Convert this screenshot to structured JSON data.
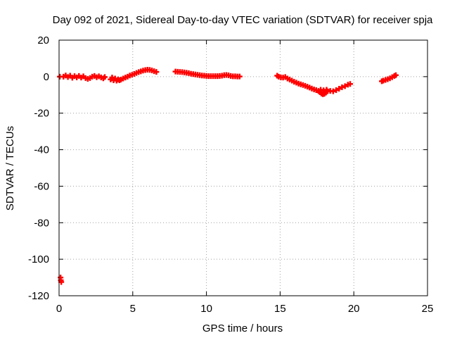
{
  "chart_data": {
    "type": "scatter",
    "title": "Day 092 of 2021, Sidereal Day-to-day VTEC variation (SDTVAR) for receiver spja",
    "xlabel": "GPS time / hours",
    "ylabel": "SDTVAR / TECUs",
    "xlim": [
      0,
      25
    ],
    "ylim": [
      -120,
      20
    ],
    "xticks": [
      0,
      5,
      10,
      15,
      20,
      25
    ],
    "yticks": [
      20,
      0,
      -20,
      -40,
      -60,
      -80,
      -100,
      -120
    ],
    "grid": true,
    "marker": "plus",
    "series": [
      {
        "name": "SDTVAR",
        "color": "#ff0000",
        "points": [
          [
            0.05,
            0.0
          ],
          [
            0.1,
            -110.0
          ],
          [
            0.12,
            -111.5
          ],
          [
            0.15,
            -112.5
          ],
          [
            0.3,
            0.0
          ],
          [
            0.45,
            0.6
          ],
          [
            0.6,
            -0.2
          ],
          [
            0.75,
            0.5
          ],
          [
            0.9,
            -0.6
          ],
          [
            1.05,
            0.3
          ],
          [
            1.2,
            -0.4
          ],
          [
            1.35,
            0.4
          ],
          [
            1.5,
            -0.5
          ],
          [
            1.65,
            0.2
          ],
          [
            1.8,
            -0.8
          ],
          [
            1.95,
            -1.2
          ],
          [
            2.1,
            -0.8
          ],
          [
            2.25,
            0.0
          ],
          [
            2.4,
            0.4
          ],
          [
            2.55,
            -0.3
          ],
          [
            2.7,
            0.2
          ],
          [
            2.85,
            -0.4
          ],
          [
            3.0,
            -0.9
          ],
          [
            3.1,
            -0.2
          ],
          [
            3.5,
            -1.5
          ],
          [
            3.6,
            -0.5
          ],
          [
            3.7,
            -2.0
          ],
          [
            3.8,
            -1.0
          ],
          [
            3.9,
            -2.2
          ],
          [
            4.0,
            -1.5
          ],
          [
            4.1,
            -2.0
          ],
          [
            4.2,
            -1.6
          ],
          [
            4.35,
            -1.0
          ],
          [
            4.5,
            -0.5
          ],
          [
            4.65,
            0.0
          ],
          [
            4.8,
            0.6
          ],
          [
            4.95,
            1.0
          ],
          [
            5.1,
            1.5
          ],
          [
            5.25,
            2.0
          ],
          [
            5.4,
            2.5
          ],
          [
            5.55,
            2.9
          ],
          [
            5.7,
            3.3
          ],
          [
            5.85,
            3.6
          ],
          [
            6.0,
            3.8
          ],
          [
            6.15,
            3.7
          ],
          [
            6.3,
            3.4
          ],
          [
            6.45,
            3.0
          ],
          [
            6.6,
            2.6
          ],
          [
            7.9,
            2.8
          ],
          [
            8.05,
            2.7
          ],
          [
            8.2,
            2.6
          ],
          [
            8.35,
            2.5
          ],
          [
            8.5,
            2.3
          ],
          [
            8.65,
            2.1
          ],
          [
            8.8,
            1.9
          ],
          [
            8.95,
            1.6
          ],
          [
            9.1,
            1.4
          ],
          [
            9.25,
            1.2
          ],
          [
            9.4,
            1.0
          ],
          [
            9.55,
            0.8
          ],
          [
            9.7,
            0.6
          ],
          [
            9.85,
            0.5
          ],
          [
            10.0,
            0.4
          ],
          [
            10.15,
            0.3
          ],
          [
            10.3,
            0.3
          ],
          [
            10.45,
            0.3
          ],
          [
            10.6,
            0.3
          ],
          [
            10.75,
            0.3
          ],
          [
            10.9,
            0.4
          ],
          [
            11.05,
            0.5
          ],
          [
            11.2,
            0.8
          ],
          [
            11.35,
            0.9
          ],
          [
            11.5,
            0.7
          ],
          [
            11.65,
            0.4
          ],
          [
            11.8,
            0.2
          ],
          [
            11.95,
            0.2
          ],
          [
            12.1,
            0.1
          ],
          [
            12.25,
            0.1
          ],
          [
            14.8,
            0.5
          ],
          [
            14.9,
            0.0
          ],
          [
            15.05,
            -0.4
          ],
          [
            15.2,
            -0.5
          ],
          [
            15.35,
            -0.2
          ],
          [
            15.5,
            -1.0
          ],
          [
            15.65,
            -1.6
          ],
          [
            15.8,
            -2.2
          ],
          [
            15.95,
            -2.8
          ],
          [
            16.1,
            -3.3
          ],
          [
            16.25,
            -3.8
          ],
          [
            16.4,
            -4.2
          ],
          [
            16.55,
            -4.6
          ],
          [
            16.7,
            -5.0
          ],
          [
            16.85,
            -5.5
          ],
          [
            17.0,
            -6.0
          ],
          [
            17.15,
            -6.5
          ],
          [
            17.3,
            -7.0
          ],
          [
            17.45,
            -7.4
          ],
          [
            17.6,
            -7.8
          ],
          [
            17.7,
            -8.5
          ],
          [
            17.8,
            -9.2
          ],
          [
            17.9,
            -9.6
          ],
          [
            18.0,
            -9.4
          ],
          [
            18.1,
            -8.8
          ],
          [
            18.2,
            -8.0
          ],
          [
            17.75,
            -7.2
          ],
          [
            17.95,
            -7.5
          ],
          [
            18.15,
            -7.2
          ],
          [
            18.4,
            -7.8
          ],
          [
            18.6,
            -8.0
          ],
          [
            18.8,
            -7.4
          ],
          [
            19.0,
            -6.6
          ],
          [
            19.2,
            -5.8
          ],
          [
            19.4,
            -5.2
          ],
          [
            19.6,
            -4.4
          ],
          [
            19.75,
            -4.0
          ],
          [
            21.9,
            -2.5
          ],
          [
            22.0,
            -2.2
          ],
          [
            22.15,
            -1.8
          ],
          [
            22.3,
            -1.4
          ],
          [
            22.45,
            -0.9
          ],
          [
            22.6,
            -0.3
          ],
          [
            22.75,
            0.4
          ],
          [
            22.85,
            0.8
          ]
        ]
      }
    ]
  }
}
